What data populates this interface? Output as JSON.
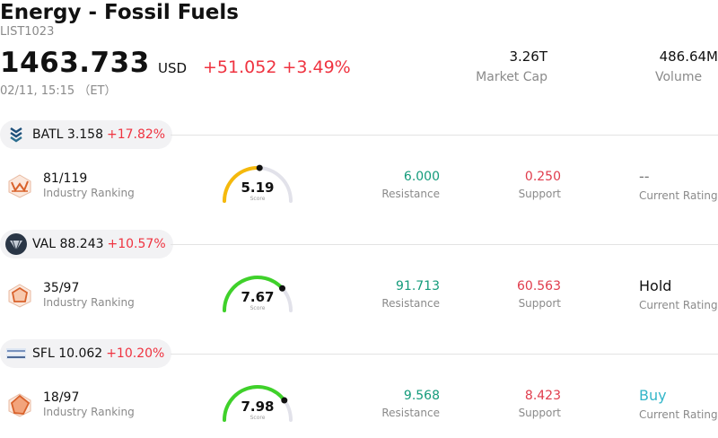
{
  "header": {
    "title": "Energy - Fossil Fuels",
    "code": "LIST1023",
    "price": "1463.733",
    "currency": "USD",
    "change": "+51.052 +3.49%",
    "time": "02/11, 15:15 （ET）",
    "market_cap_value": "3.26T",
    "market_cap_label": "Market Cap",
    "volume_value": "486.64M",
    "volume_label": "Volume"
  },
  "colors": {
    "up": "#ef3340",
    "resistance": "#149b7b",
    "support": "#e03c4c",
    "buy": "#33b6c9"
  },
  "stocks": [
    {
      "ticker": "BATL",
      "price": "3.158",
      "change": "+17.82%",
      "ranking": "81/119",
      "ranking_label": "Industry Ranking",
      "score": "5.19",
      "score_label": "Score",
      "score_level": 0.519,
      "resistance": "6.000",
      "resistance_label": "Resistance",
      "support": "0.250",
      "support_label": "Support",
      "rating": "--",
      "rating_label": "Current Rating"
    },
    {
      "ticker": "VAL",
      "price": "88.243",
      "change": "+10.57%",
      "ranking": "35/97",
      "ranking_label": "Industry Ranking",
      "score": "7.67",
      "score_label": "Score",
      "score_level": 0.767,
      "resistance": "91.713",
      "resistance_label": "Resistance",
      "support": "60.563",
      "support_label": "Support",
      "rating": "Hold",
      "rating_label": "Current Rating"
    },
    {
      "ticker": "SFL",
      "price": "10.062",
      "change": "+10.20%",
      "ranking": "18/97",
      "ranking_label": "Industry Ranking",
      "score": "7.98",
      "score_label": "Score",
      "score_level": 0.798,
      "resistance": "9.568",
      "resistance_label": "Resistance",
      "support": "8.423",
      "support_label": "Support",
      "rating": "Buy",
      "rating_label": "Current Rating"
    }
  ]
}
